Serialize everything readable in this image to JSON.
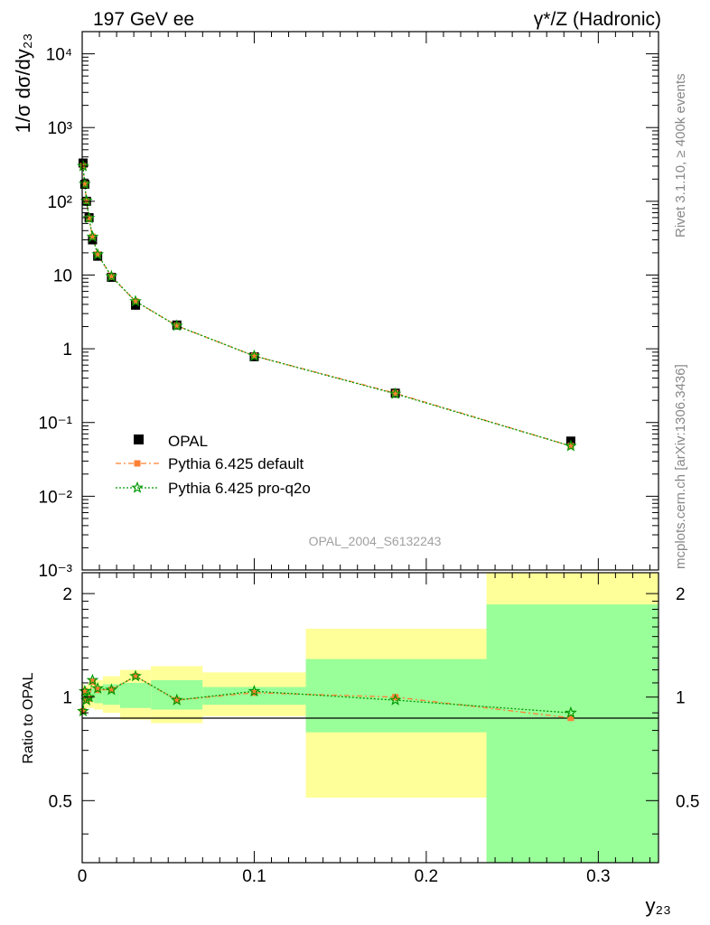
{
  "header": {
    "left": "197 GeV ee",
    "right": "γ*/Z (Hadronic)"
  },
  "side_text": {
    "rivet": "Rivet 3.1.10, ≥ 400k events",
    "mcplots": "mcplots.cern.ch [arXiv:1306.3436]"
  },
  "analysis_label": "OPAL_2004_S6132243",
  "colors": {
    "data": "#000000",
    "default": "#ff8033",
    "proq2o": "#009900",
    "band_inner": "#99ff99",
    "band_outer": "#ffff99"
  },
  "chart_data": [
    {
      "type": "scatter",
      "panel": "main",
      "ylabel": "1/σ dσ/dy₂₃",
      "yscale": "log",
      "ylim": [
        0.001,
        20000
      ],
      "xlim": [
        0,
        0.335
      ],
      "ytick_labels": [
        "10⁻³",
        "10⁻²",
        "10⁻¹",
        "1",
        "10",
        "10²",
        "10³",
        "10⁴"
      ],
      "legend_position": "lower-left",
      "series": [
        {
          "name": "OPAL",
          "x": [
            0.0005,
            0.0015,
            0.0025,
            0.004,
            0.006,
            0.009,
            0.017,
            0.031,
            0.055,
            0.1,
            0.182,
            0.284
          ],
          "y": [
            330,
            170,
            100,
            60,
            30,
            18,
            9.3,
            3.9,
            2.1,
            0.78,
            0.25,
            0.056
          ]
        },
        {
          "name": "Pythia 6.425 default",
          "x": [
            0.0005,
            0.0015,
            0.0025,
            0.004,
            0.006,
            0.009,
            0.017,
            0.031,
            0.055,
            0.1,
            0.182,
            0.284
          ],
          "y": [
            300,
            170,
            100,
            58,
            33,
            19,
            9.5,
            4.4,
            2.05,
            0.8,
            0.25,
            0.048
          ]
        },
        {
          "name": "Pythia 6.425 pro-q2o",
          "x": [
            0.0005,
            0.0015,
            0.0025,
            0.004,
            0.006,
            0.009,
            0.017,
            0.031,
            0.055,
            0.1,
            0.182,
            0.284
          ],
          "y": [
            300,
            172,
            101,
            59,
            33,
            19,
            9.6,
            4.4,
            2.05,
            0.8,
            0.245,
            0.048
          ]
        }
      ]
    },
    {
      "type": "line",
      "panel": "ratio",
      "ylabel": "Ratio to OPAL",
      "xlabel": "y₂₃",
      "yscale": "log",
      "ylim": [
        0.33,
        2.3
      ],
      "xlim": [
        0,
        0.335
      ],
      "xtick_labels": [
        "0",
        "0.1",
        "0.2",
        "0.3"
      ],
      "ytick_labels": [
        "0.5",
        "1",
        "2"
      ],
      "uncertainty_bands": [
        {
          "x": [
            0,
            0.001
          ],
          "inner": [
            0.95,
            1.05
          ],
          "outer": [
            0.91,
            1.09
          ]
        },
        {
          "x": [
            0.001,
            0.002
          ],
          "inner": [
            0.96,
            1.05
          ],
          "outer": [
            0.93,
            1.08
          ]
        },
        {
          "x": [
            0.002,
            0.003
          ],
          "inner": [
            0.96,
            1.05
          ],
          "outer": [
            0.93,
            1.08
          ]
        },
        {
          "x": [
            0.003,
            0.005
          ],
          "inner": [
            0.97,
            1.06
          ],
          "outer": [
            0.93,
            1.1
          ]
        },
        {
          "x": [
            0.005,
            0.007
          ],
          "inner": [
            0.97,
            1.06
          ],
          "outer": [
            0.93,
            1.1
          ]
        },
        {
          "x": [
            0.007,
            0.012
          ],
          "inner": [
            0.96,
            1.07
          ],
          "outer": [
            0.92,
            1.12
          ]
        },
        {
          "x": [
            0.012,
            0.022
          ],
          "inner": [
            0.95,
            1.09
          ],
          "outer": [
            0.9,
            1.15
          ]
        },
        {
          "x": [
            0.022,
            0.04
          ],
          "inner": [
            0.93,
            1.1
          ],
          "outer": [
            0.86,
            1.2
          ]
        },
        {
          "x": [
            0.04,
            0.07
          ],
          "inner": [
            0.92,
            1.12
          ],
          "outer": [
            0.84,
            1.23
          ]
        },
        {
          "x": [
            0.07,
            0.13
          ],
          "inner": [
            0.95,
            1.07
          ],
          "outer": [
            0.88,
            1.18
          ]
        },
        {
          "x": [
            0.13,
            0.235
          ],
          "inner": [
            0.79,
            1.29
          ],
          "outer": [
            0.51,
            1.58
          ]
        },
        {
          "x": [
            0.235,
            0.335
          ],
          "inner": [
            0.33,
            1.86
          ],
          "outer": [
            0.33,
            2.3
          ]
        }
      ],
      "series": [
        {
          "name": "Pythia 6.425 default",
          "x": [
            0.0005,
            0.0015,
            0.0025,
            0.004,
            0.006,
            0.009,
            0.017,
            0.031,
            0.055,
            0.1,
            0.182,
            0.284
          ],
          "y": [
            0.91,
            1.04,
            0.98,
            0.99,
            1.11,
            1.05,
            1.05,
            1.15,
            0.98,
            1.03,
            1.0,
            0.87
          ]
        },
        {
          "name": "Pythia 6.425 pro-q2o",
          "x": [
            0.0005,
            0.0015,
            0.0025,
            0.004,
            0.006,
            0.009,
            0.017,
            0.031,
            0.055,
            0.1,
            0.182,
            0.284
          ],
          "y": [
            0.91,
            1.04,
            0.98,
            1.0,
            1.12,
            1.06,
            1.05,
            1.15,
            0.98,
            1.04,
            0.98,
            0.9
          ]
        }
      ]
    }
  ]
}
